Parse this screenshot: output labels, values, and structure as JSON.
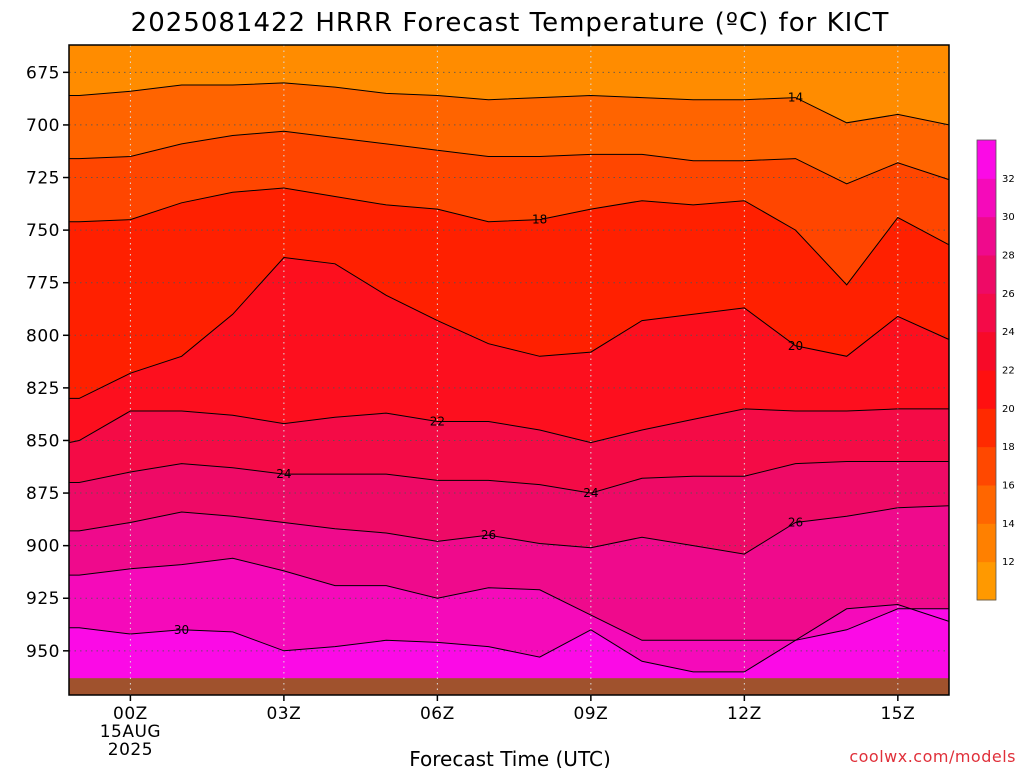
{
  "title": "2025081422 HRRR Forecast Temperature (ºC) for KICT",
  "watermark": "coolwx.com/models",
  "chart_data": {
    "type": "heatmap",
    "title": "2025081422 HRRR Forecast Temperature (ºC) for KICT",
    "xlabel": "Forecast Time (UTC)",
    "ylabel": "",
    "x_range_hours": [
      -1.2,
      16.0
    ],
    "y_range": [
      662,
      971
    ],
    "y_scale": "pressure",
    "y_ticks": [
      "675",
      "700",
      "725",
      "750",
      "775",
      "800",
      "825",
      "850",
      "875",
      "900",
      "925",
      "950"
    ],
    "x_ticks": [
      {
        "hour": 0,
        "label": "00Z",
        "sub": [
          "15AUG",
          "2025"
        ]
      },
      {
        "hour": 3,
        "label": "03Z",
        "sub": []
      },
      {
        "hour": 6,
        "label": "06Z",
        "sub": []
      },
      {
        "hour": 9,
        "label": "09Z",
        "sub": []
      },
      {
        "hour": 12,
        "label": "12Z",
        "sub": []
      },
      {
        "hour": 15,
        "label": "15Z",
        "sub": []
      }
    ],
    "hours": [
      -1.2,
      -1,
      0,
      1,
      2,
      3,
      4,
      5,
      6,
      7,
      8,
      9,
      10,
      11,
      12,
      13,
      14,
      15,
      16
    ],
    "contour_levels": [
      14,
      16,
      18,
      20,
      22,
      24,
      26,
      28,
      30
    ],
    "contours": [
      {
        "level": 14,
        "p": [
          686,
          686,
          684,
          681,
          681,
          680,
          682,
          685,
          686,
          688,
          687,
          686,
          687,
          688,
          688,
          687,
          699,
          695,
          700
        ]
      },
      {
        "level": 16,
        "p": [
          716,
          716,
          715,
          709,
          705,
          703,
          706,
          709,
          712,
          715,
          715,
          714,
          714,
          717,
          717,
          716,
          728,
          718,
          726
        ]
      },
      {
        "level": 18,
        "p": [
          746,
          746,
          745,
          737,
          732,
          730,
          734,
          738,
          740,
          746,
          745,
          740,
          736,
          738,
          736,
          750,
          776,
          744,
          757
        ]
      },
      {
        "level": 20,
        "p": [
          830,
          830,
          818,
          810,
          790,
          763,
          766,
          781,
          793,
          804,
          810,
          808,
          793,
          790,
          787,
          805,
          810,
          791,
          802
        ]
      },
      {
        "level": 22,
        "p": [
          851,
          850,
          836,
          836,
          838,
          842,
          839,
          837,
          841,
          841,
          845,
          851,
          845,
          840,
          835,
          836,
          836,
          835,
          835
        ]
      },
      {
        "level": 24,
        "p": [
          870,
          870,
          865,
          861,
          863,
          866,
          866,
          866,
          869,
          869,
          871,
          875,
          868,
          867,
          867,
          861,
          860,
          860,
          860
        ]
      },
      {
        "level": 26,
        "p": [
          893,
          893,
          889,
          884,
          886,
          889,
          892,
          894,
          898,
          895,
          899,
          901,
          896,
          900,
          904,
          889,
          886,
          882,
          881
        ]
      },
      {
        "level": 28,
        "p": [
          914,
          914,
          911,
          909,
          906,
          912,
          919,
          919,
          925,
          920,
          921,
          933,
          945,
          945,
          945,
          945,
          930,
          928,
          936
        ]
      },
      {
        "level": 30,
        "p": [
          939,
          939,
          942,
          940,
          941,
          950,
          948,
          945,
          946,
          948,
          953,
          940,
          955,
          960,
          960,
          945,
          940,
          930,
          930
        ]
      }
    ],
    "ground_pressure": 963,
    "colorbar": {
      "levels": [
        10,
        12,
        14,
        16,
        18,
        20,
        22,
        24,
        26,
        28,
        30,
        32,
        34
      ],
      "labels": [
        "12",
        "14",
        "16",
        "18",
        "20",
        "22",
        "24",
        "26",
        "28",
        "30",
        "32"
      ],
      "colors": [
        "#ff9900",
        "#ff8000",
        "#ff6600",
        "#ff4800",
        "#ff2a00",
        "#ff1010",
        "#f70a28",
        "#f40a48",
        "#ee0a66",
        "#ef0a8c",
        "#f50aba",
        "#fb0ae6"
      ]
    },
    "band_colors": [
      "#ff8c00",
      "#ff6400",
      "#ff4600",
      "#ff2000",
      "#fd0f1e",
      "#f40b46",
      "#ee0a66",
      "#ef0a8c",
      "#f50aba",
      "#fb0ae6"
    ],
    "ground_color": "#a0522d",
    "grid": true
  }
}
